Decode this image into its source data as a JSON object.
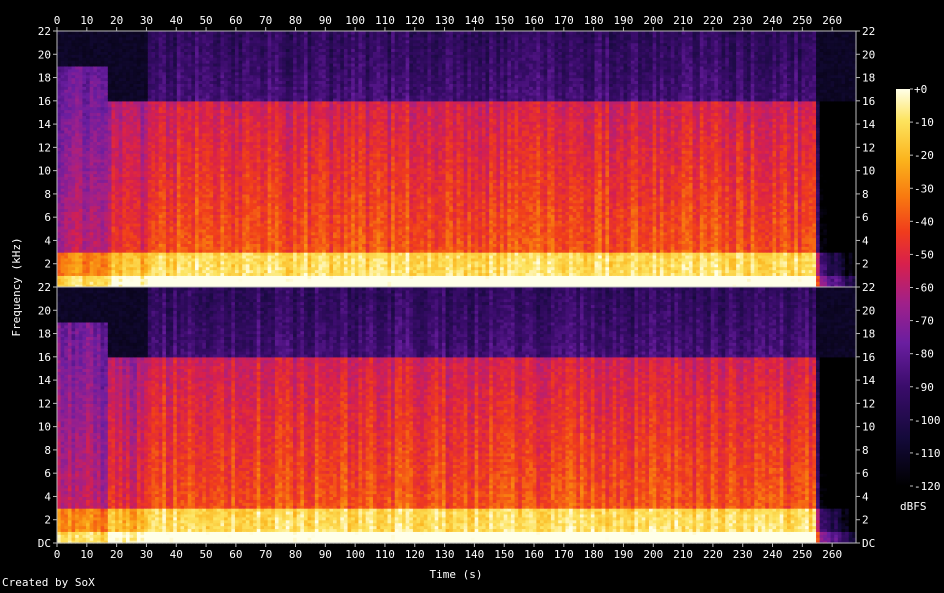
{
  "chart_data": {
    "type": "heatmap",
    "subtype": "spectrogram",
    "channels": 2,
    "xlabel": "Time (s)",
    "ylabel": "Frequency (kHz)",
    "xlim": [
      0,
      268
    ],
    "x_ticks": [
      "0",
      "10",
      "20",
      "30",
      "40",
      "50",
      "60",
      "70",
      "80",
      "90",
      "100",
      "110",
      "120",
      "130",
      "140",
      "150",
      "160",
      "170",
      "180",
      "190",
      "200",
      "210",
      "220",
      "230",
      "240",
      "250",
      "260"
    ],
    "ylim": [
      0,
      22
    ],
    "y_ticks": [
      "DC",
      "2",
      "4",
      "6",
      "8",
      "10",
      "12",
      "14",
      "16",
      "18",
      "20",
      "22"
    ],
    "colorbar": {
      "label": "dBFS",
      "range": [
        -120,
        0
      ],
      "ticks": [
        "+0",
        "-10",
        "-20",
        "-30",
        "-40",
        "-50",
        "-60",
        "-70",
        "-80",
        "-90",
        "-100",
        "-110",
        "-120"
      ],
      "colors": [
        "#000000",
        "#3a0c6b",
        "#6a1ea0",
        "#a0208a",
        "#d8204c",
        "#f03c1c",
        "#f87a10",
        "#fbb31c",
        "#fde35e",
        "#ffffe8"
      ]
    },
    "segments": [
      {
        "t0": 0,
        "t1": 17,
        "cutoff_khz": 19,
        "level_db": -55
      },
      {
        "t0": 17,
        "t1": 31,
        "cutoff_khz": 16,
        "level_db": -45
      },
      {
        "t0": 31,
        "t1": 254,
        "cutoff_khz": 22,
        "level_db": -35
      },
      {
        "t0": 254,
        "t1": 268,
        "cutoff_khz": 16,
        "level_db": -90
      }
    ]
  },
  "footer": "Created by SoX"
}
